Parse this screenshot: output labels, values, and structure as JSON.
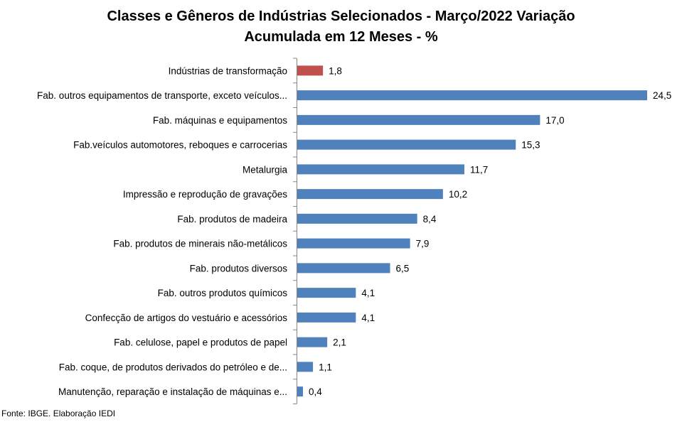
{
  "title_line1": "Classes e Gêneros de Indústrias Selecionados - Março/2022 Variação",
  "title_line2": "Acumulada em 12 Meses - %",
  "source": "Fonte: IBGE. Elaboração IEDI",
  "colors": {
    "highlight": "#c0504d",
    "bar": "#4f81bd",
    "axis": "#868686"
  },
  "chart_data": {
    "type": "bar",
    "orientation": "horizontal",
    "title": "Classes e Gêneros de Indústrias Selecionados - Março/2022 Variação Acumulada em 12 Meses - %",
    "xlabel": "",
    "ylabel": "",
    "xlim": [
      0,
      25
    ],
    "grid": false,
    "categories": [
      "Indústrias de transformação",
      "Fab. outros equipamentos de transporte, exceto veículos...",
      "Fab. máquinas e equipamentos",
      "Fab.veículos automotores, reboques e carrocerias",
      "Metalurgia",
      "Impressão e reprodução de gravações",
      "Fab. produtos de madeira",
      "Fab. produtos de minerais não-metálicos",
      "Fab. produtos diversos",
      "Fab. outros produtos químicos",
      "Confecção de artigos do vestuário e acessórios",
      "Fab. celulose, papel e produtos de papel",
      "Fab. coque, de produtos derivados do petróleo e de...",
      "Manutenção, reparação e instalação de máquinas e..."
    ],
    "values": [
      1.8,
      24.5,
      17.0,
      15.3,
      11.7,
      10.2,
      8.4,
      7.9,
      6.5,
      4.1,
      4.1,
      2.1,
      1.1,
      0.4
    ],
    "value_labels": [
      "1,8",
      "24,5",
      "17,0",
      "15,3",
      "11,7",
      "10,2",
      "8,4",
      "7,9",
      "6,5",
      "4,1",
      "4,1",
      "2,1",
      "1,1",
      "0,4"
    ],
    "highlight_index": 0
  }
}
